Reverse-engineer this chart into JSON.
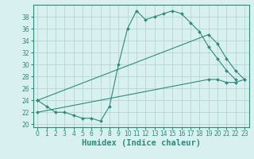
{
  "line1_x": [
    0,
    1,
    2,
    3,
    4,
    5,
    6,
    7,
    8,
    9,
    10,
    11,
    12,
    13,
    14,
    15,
    16,
    17,
    18,
    19,
    20,
    21,
    22
  ],
  "line1_y": [
    24,
    23,
    22,
    22,
    21.5,
    21,
    21,
    20.5,
    23,
    30,
    36,
    39,
    37.5,
    38,
    38.5,
    39,
    38.5,
    37,
    35.5,
    33,
    31,
    29,
    27.5
  ],
  "line2_x": [
    0,
    19,
    20,
    21,
    22,
    23
  ],
  "line2_y": [
    24,
    35,
    33.5,
    31,
    29,
    27.5
  ],
  "line3_x": [
    0,
    19,
    20,
    21,
    22,
    23
  ],
  "line3_y": [
    22,
    27.5,
    27.5,
    27,
    27,
    27.5
  ],
  "line_color": "#2E8B7A",
  "bg_color": "#D8F0F0",
  "grid_color": "#B0D0D0",
  "xlabel": "Humidex (Indice chaleur)",
  "xlim": [
    -0.5,
    23.5
  ],
  "ylim": [
    19.5,
    40
  ],
  "yticks": [
    20,
    22,
    24,
    26,
    28,
    30,
    32,
    34,
    36,
    38
  ],
  "xticks": [
    0,
    1,
    2,
    3,
    4,
    5,
    6,
    7,
    8,
    9,
    10,
    11,
    12,
    13,
    14,
    15,
    16,
    17,
    18,
    19,
    20,
    21,
    22,
    23
  ],
  "tick_fontsize": 5.5,
  "xlabel_fontsize": 7.5
}
